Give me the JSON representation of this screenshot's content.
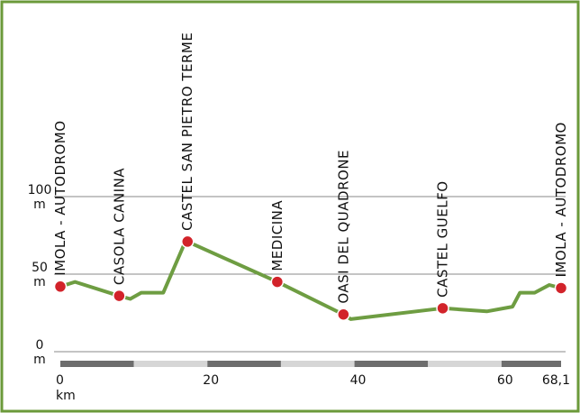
{
  "chart_data": {
    "type": "line",
    "title": "",
    "xlabel": "",
    "ylabel": "",
    "x_unit": "km",
    "y_unit": "m",
    "xlim": [
      0,
      68.1
    ],
    "ylim": [
      0,
      100
    ],
    "x_ticks": [
      {
        "value": 0,
        "label": "0"
      },
      {
        "value": 20,
        "label": "20"
      },
      {
        "value": 40,
        "label": "40"
      },
      {
        "value": 60,
        "label": "60"
      },
      {
        "value": 68.1,
        "label": "68,1"
      }
    ],
    "y_ticks": [
      {
        "value": 100,
        "label": "100"
      },
      {
        "value": 50,
        "label": "50"
      },
      {
        "value": 0,
        "label": "0"
      }
    ],
    "grid": true,
    "series": [
      {
        "x": [
          0,
          2,
          8,
          9.5,
          11,
          14,
          17,
          17.3,
          29.5,
          38.5,
          39.5,
          52,
          58,
          61.5,
          62.5,
          64.5,
          66.5,
          68.1
        ],
        "y": [
          42,
          45,
          36,
          34,
          38,
          38,
          71,
          71,
          45,
          24,
          21,
          28,
          26,
          29,
          38,
          38,
          43,
          41
        ]
      }
    ],
    "waypoints": [
      {
        "x": 0,
        "y": 42,
        "label": "IMOLA - AUTODROMO"
      },
      {
        "x": 8,
        "y": 36,
        "label": "CASOLA CANINA"
      },
      {
        "x": 17.3,
        "y": 71,
        "label": "CASTEL SAN PIETRO TERME"
      },
      {
        "x": 29.5,
        "y": 45,
        "label": "MEDICINA"
      },
      {
        "x": 38.5,
        "y": 24,
        "label": "OASI DEL QUADRONE"
      },
      {
        "x": 52,
        "y": 28,
        "label": "CASTEL GUELFO"
      },
      {
        "x": 68.1,
        "y": 41,
        "label": "IMOLA - AUTODROMO"
      }
    ],
    "colors": {
      "border": "#6b9a3a",
      "line": "#6e9d42",
      "marker": "#d2232a",
      "grid": "#888888",
      "scale_dark": "#6d6d6d",
      "scale_light": "#d6d6d6"
    }
  }
}
